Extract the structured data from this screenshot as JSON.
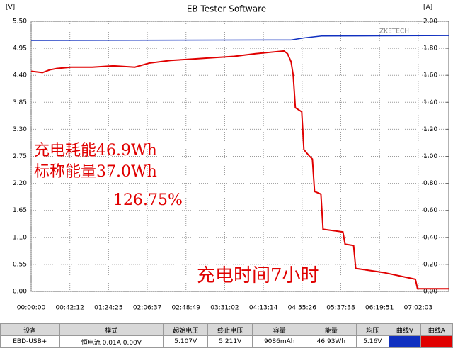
{
  "chart_data": {
    "type": "line",
    "title": "EB Tester Software",
    "y_label": "[V]",
    "y2_label": "[A]",
    "logo": "ZKETECH",
    "xlim": [
      0,
      27321
    ],
    "ylim": [
      0,
      5.5
    ],
    "y2lim": [
      0,
      2
    ],
    "grid": true,
    "xticks": [
      {
        "value": 0,
        "label": "00:00:00"
      },
      {
        "value": 2532,
        "label": "00:42:12"
      },
      {
        "value": 5065,
        "label": "01:24:25"
      },
      {
        "value": 7597,
        "label": "02:06:37"
      },
      {
        "value": 10129,
        "label": "02:48:49"
      },
      {
        "value": 12662,
        "label": "03:31:02"
      },
      {
        "value": 15194,
        "label": "04:13:14"
      },
      {
        "value": 17726,
        "label": "04:55:26"
      },
      {
        "value": 20258,
        "label": "05:37:38"
      },
      {
        "value": 22791,
        "label": "06:19:51"
      },
      {
        "value": 25323,
        "label": "07:02:03"
      }
    ],
    "yticks": [
      {
        "value": 0,
        "label": "0.00"
      },
      {
        "value": 0.55,
        "label": "0.55"
      },
      {
        "value": 1.1,
        "label": "1.10"
      },
      {
        "value": 1.65,
        "label": "1.65"
      },
      {
        "value": 2.2,
        "label": "2.20"
      },
      {
        "value": 2.75,
        "label": "2.75"
      },
      {
        "value": 3.3,
        "label": "3.30"
      },
      {
        "value": 3.85,
        "label": "3.85"
      },
      {
        "value": 4.4,
        "label": "4.40"
      },
      {
        "value": 4.95,
        "label": "4.95"
      },
      {
        "value": 5.5,
        "label": "5.50"
      }
    ],
    "y2ticks": [
      {
        "value": 0,
        "label": "0.00"
      },
      {
        "value": 0.2,
        "label": "0.20"
      },
      {
        "value": 0.4,
        "label": "0.40"
      },
      {
        "value": 0.6,
        "label": "0.60"
      },
      {
        "value": 0.8,
        "label": "0.80"
      },
      {
        "value": 1,
        "label": "1.00"
      },
      {
        "value": 1.2,
        "label": "1.20"
      },
      {
        "value": 1.4,
        "label": "1.40"
      },
      {
        "value": 1.6,
        "label": "1.60"
      },
      {
        "value": 1.8,
        "label": "1.80"
      },
      {
        "value": 2,
        "label": "2.00"
      }
    ],
    "series": [
      {
        "color": "#1030c0",
        "x": [
          0,
          17000,
          17843,
          19000,
          27321
        ],
        "values": [
          5.11,
          5.12,
          5.16,
          5.2,
          5.21
        ]
      },
      {
        "color": "#e00000",
        "axis": "y2",
        "x": [
          0,
          743,
          1208,
          1673,
          2602,
          3996,
          5390,
          6784,
          7713,
          9107,
          10501,
          11895,
          13289,
          14683,
          15612,
          16542,
          16774,
          17006,
          17146,
          17285,
          17703,
          17843,
          18214,
          18400,
          18540,
          18958,
          19097,
          20398,
          20538,
          21096,
          21235,
          23047,
          25138,
          25277,
          27321
        ],
        "values": [
          1.63,
          1.62,
          1.64,
          1.65,
          1.66,
          1.66,
          1.67,
          1.66,
          1.69,
          1.71,
          1.72,
          1.73,
          1.74,
          1.76,
          1.77,
          1.78,
          1.76,
          1.7,
          1.6,
          1.36,
          1.33,
          1.05,
          1,
          0.98,
          0.74,
          0.72,
          0.46,
          0.44,
          0.35,
          0.34,
          0.17,
          0.14,
          0.09,
          0.02,
          0.02
        ]
      }
    ],
    "annotations": [
      "充电耗能46.9Wh",
      "标称能量37.0Wh",
      "126.75%",
      "充电时间7小时"
    ]
  },
  "table": {
    "headers": [
      "设备",
      "模式",
      "起始电压",
      "终止电压",
      "容量",
      "能量",
      "均压",
      "曲线V",
      "曲线A"
    ],
    "rows": [
      [
        "EBD-USB+",
        "恒电流  0.01A  0.00V",
        "5.107V",
        "5.211V",
        "9086mAh",
        "46.93Wh",
        "5.16V"
      ]
    ]
  }
}
